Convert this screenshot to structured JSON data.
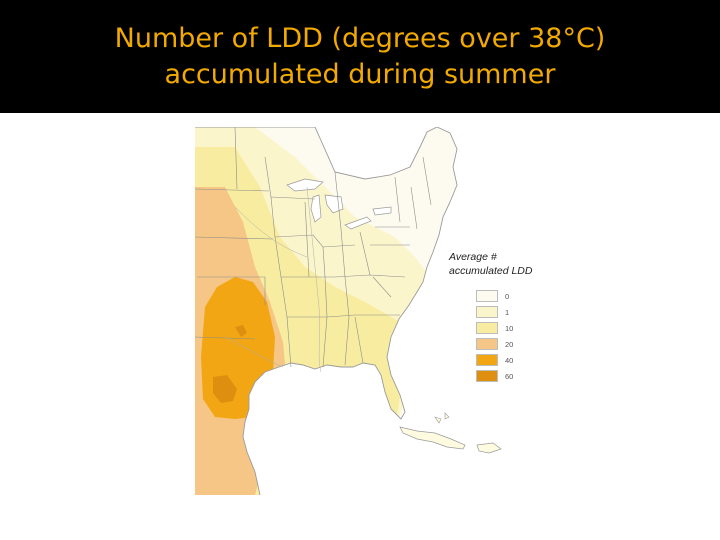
{
  "title": {
    "line1": "Number of LDD (degrees over 38°C)",
    "line2": "accumulated during summer"
  },
  "colors": {
    "title_text": "#f2a900",
    "title_background": "#000000",
    "water": "#ffffff",
    "land_base": "#fffbe0",
    "borders": "#9a9a9a"
  },
  "legend": {
    "title": "Average # accumulated LDD",
    "items": [
      {
        "label": "0",
        "color": "#fdfbf0"
      },
      {
        "label": "1",
        "color": "#fbf5cc"
      },
      {
        "label": "10",
        "color": "#f8eca0"
      },
      {
        "label": "20",
        "color": "#f5c686"
      },
      {
        "label": "40",
        "color": "#f3a613"
      },
      {
        "label": "60",
        "color": "#df8f10"
      }
    ]
  }
}
